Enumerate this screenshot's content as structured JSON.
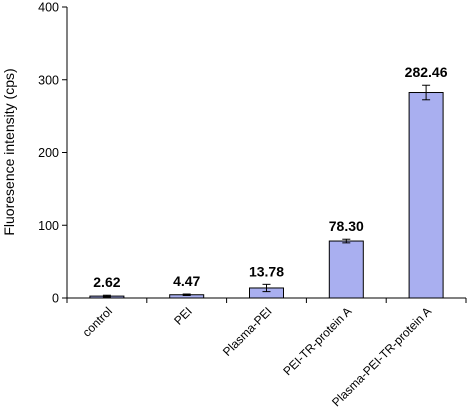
{
  "chart_data": {
    "type": "bar",
    "title": "",
    "xlabel": "",
    "ylabel": "Fluoresence intensity (cps)",
    "ylim": [
      0,
      400
    ],
    "yticks": [
      0,
      100,
      200,
      300,
      400
    ],
    "grid": false,
    "legend": "none",
    "categories": [
      "control",
      "PEI",
      "Plasma-PEI",
      "PEI-TR-protein A",
      "Plasma-PEI-TR-protein A"
    ],
    "values": [
      2.62,
      4.47,
      13.78,
      78.3,
      282.46
    ],
    "data_labels": [
      "2.62",
      "4.47",
      "13.78",
      "78.30",
      "282.46"
    ],
    "errors": [
      1.2,
      1.0,
      5.0,
      2.5,
      10.0
    ],
    "colors": {
      "bar_fill": "#a9aff0",
      "bar_stroke": "#000000",
      "axis": "#000000"
    }
  }
}
